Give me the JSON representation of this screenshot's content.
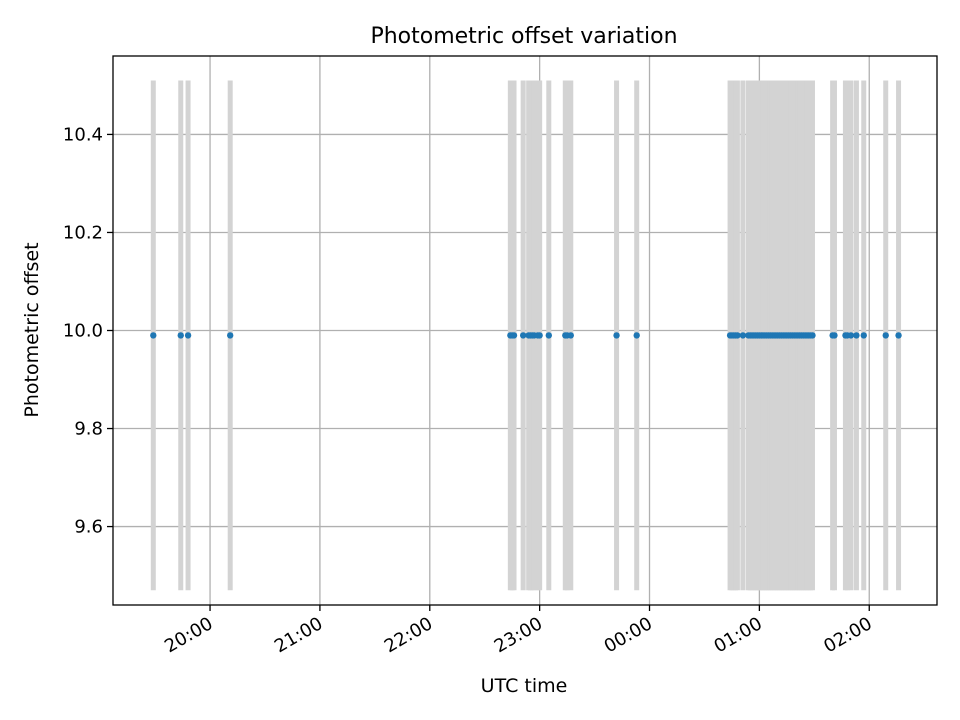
{
  "chart_data": {
    "type": "scatter",
    "title": "Photometric offset variation",
    "xlabel": "UTC time",
    "ylabel": "Photometric offset",
    "grid": true,
    "legend": "none",
    "colors": {
      "points": "#1f77b4",
      "bars": "#d3d3d3",
      "grid": "#b0b0b0"
    },
    "xlim": [
      "19:07",
      "02:37"
    ],
    "ylim": [
      9.44,
      10.56
    ],
    "xticks": [
      "20:00",
      "21:00",
      "22:00",
      "23:00",
      "00:00",
      "01:00",
      "02:00"
    ],
    "yticks": [
      "9.6",
      "9.8",
      "10.0",
      "10.2",
      "10.4"
    ],
    "error_bar_range": [
      9.47,
      10.51
    ],
    "x": [
      "19:29",
      "19:44",
      "19:48",
      "20:11",
      "22:44",
      "22:45",
      "22:46",
      "22:51",
      "22:54",
      "22:55",
      "22:56",
      "22:57",
      "22:59",
      "23:00",
      "23:05",
      "23:14",
      "23:15",
      "23:17",
      "23:42",
      "23:53",
      "00:44",
      "00:45",
      "00:46",
      "00:47",
      "00:48",
      "00:51",
      "00:54",
      "00:55",
      "00:56",
      "00:57",
      "00:58",
      "00:59",
      "01:00",
      "01:01",
      "01:02",
      "01:03",
      "01:04",
      "01:05",
      "01:06",
      "01:07",
      "01:08",
      "01:09",
      "01:10",
      "01:11",
      "01:12",
      "01:13",
      "01:14",
      "01:15",
      "01:16",
      "01:17",
      "01:18",
      "01:19",
      "01:20",
      "01:21",
      "01:22",
      "01:23",
      "01:24",
      "01:25",
      "01:26",
      "01:27",
      "01:28",
      "01:29",
      "01:40",
      "01:41",
      "01:47",
      "01:48",
      "01:50",
      "01:53",
      "01:57",
      "02:09",
      "02:16"
    ],
    "y": [
      9.99,
      9.99,
      9.99,
      9.99,
      9.99,
      9.99,
      9.99,
      9.99,
      9.99,
      9.99,
      9.99,
      9.99,
      9.99,
      9.99,
      9.99,
      9.99,
      9.99,
      9.99,
      9.99,
      9.99,
      9.99,
      9.99,
      9.99,
      9.99,
      9.99,
      9.99,
      9.99,
      9.99,
      9.99,
      9.99,
      9.99,
      9.99,
      9.99,
      9.99,
      9.99,
      9.99,
      9.99,
      9.99,
      9.99,
      9.99,
      9.99,
      9.99,
      9.99,
      9.99,
      9.99,
      9.99,
      9.99,
      9.99,
      9.99,
      9.99,
      9.99,
      9.99,
      9.99,
      9.99,
      9.99,
      9.99,
      9.99,
      9.99,
      9.99,
      9.99,
      9.99,
      9.99,
      9.99,
      9.99,
      9.99,
      9.99,
      9.99,
      9.99,
      9.99,
      9.99,
      9.99
    ]
  }
}
